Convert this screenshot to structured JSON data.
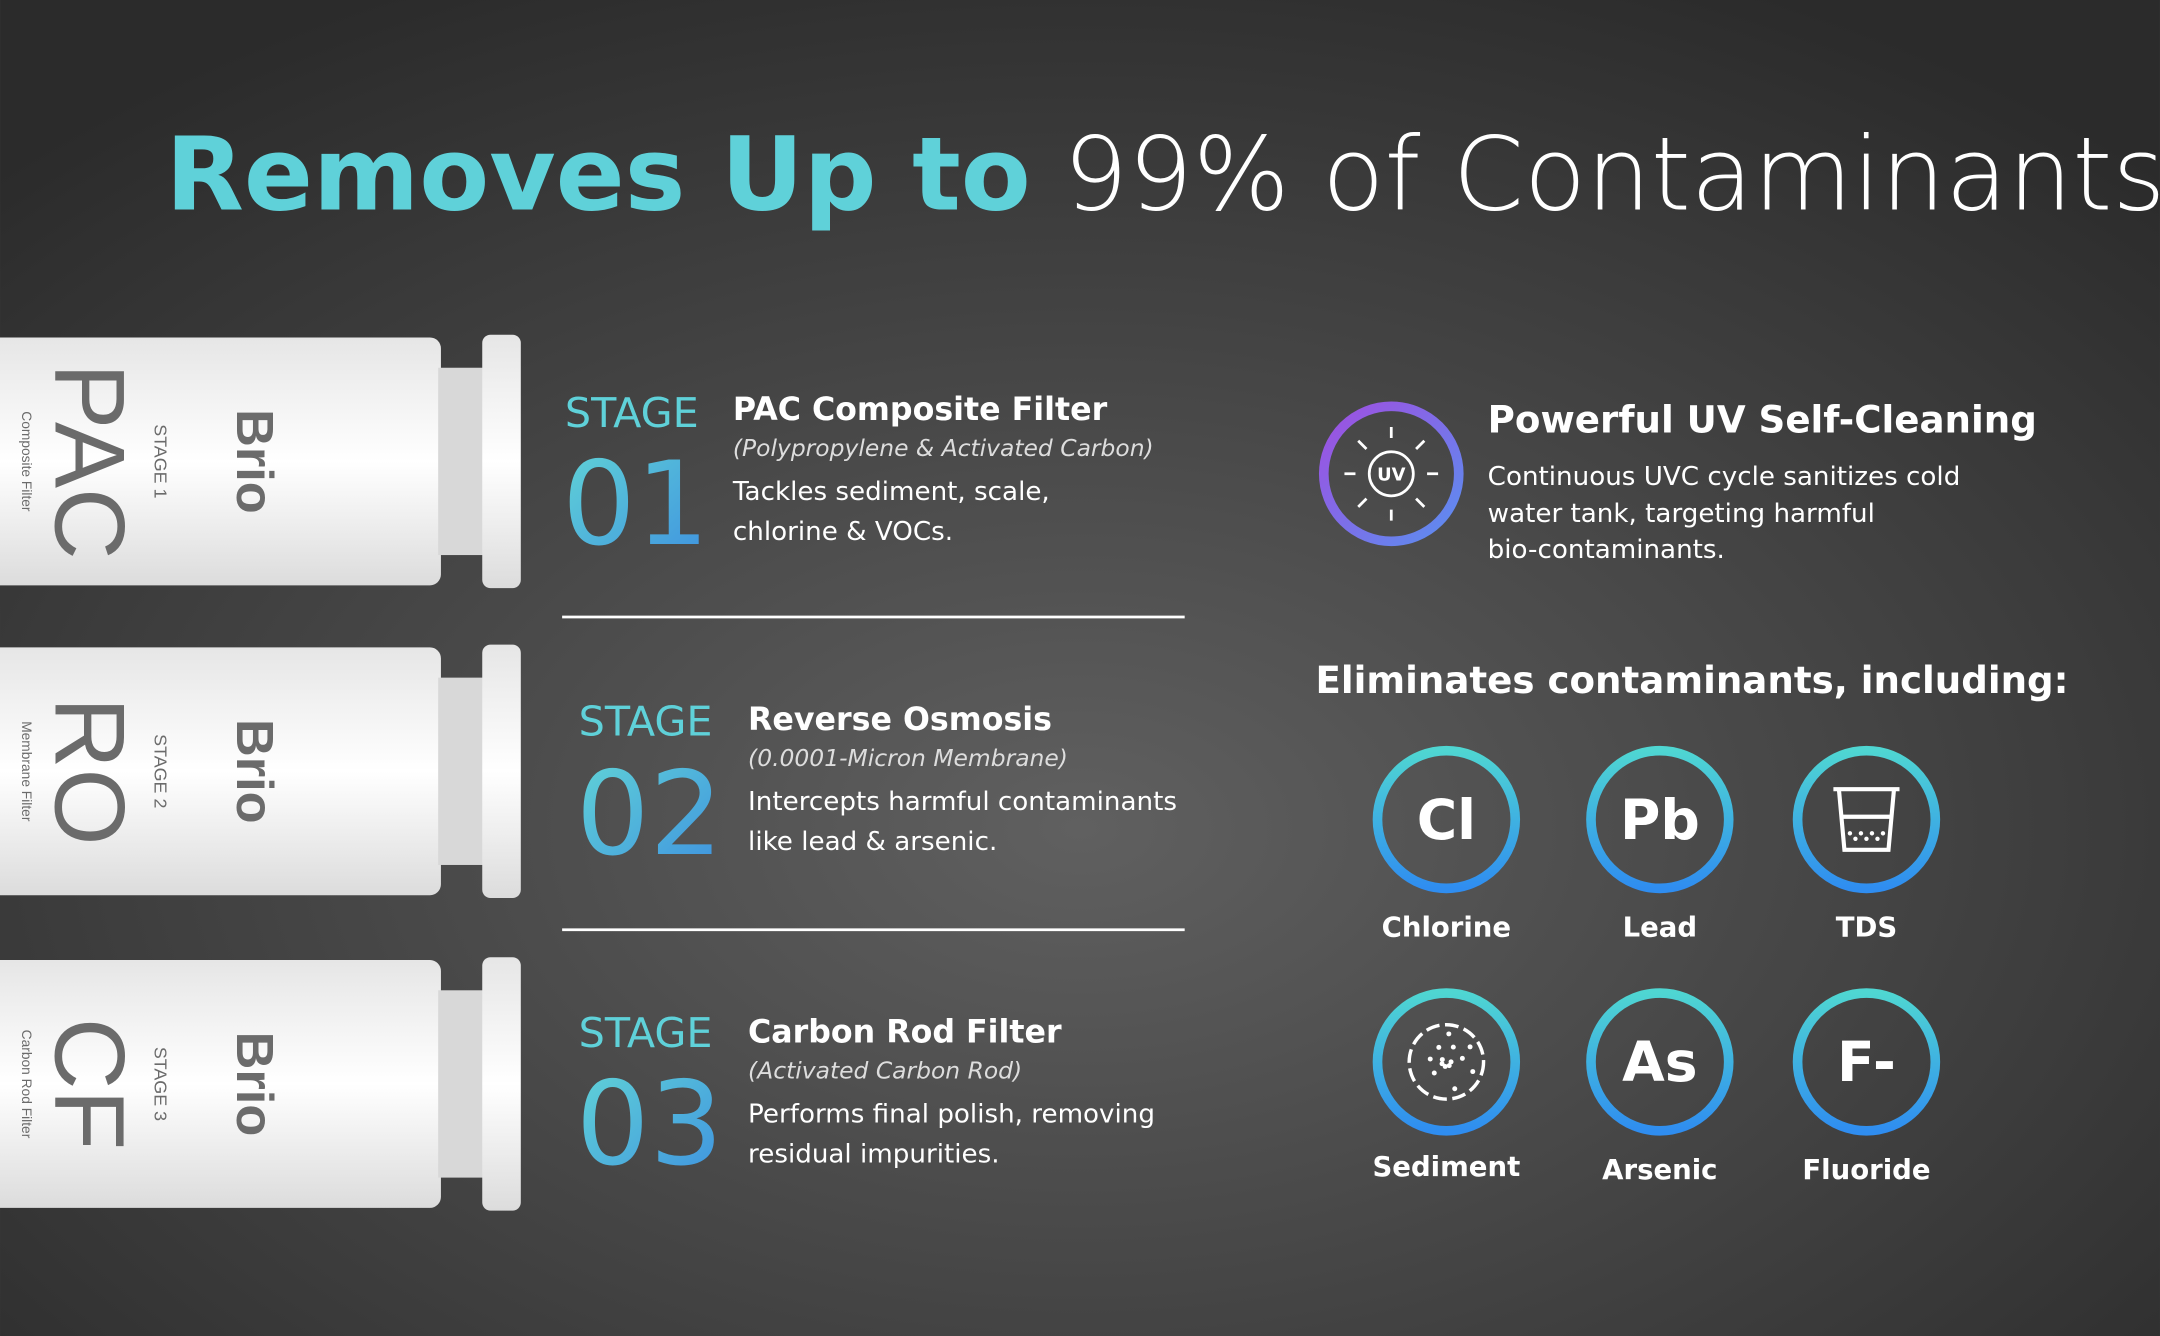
{
  "header": {
    "title_highlight": "Removes Up to",
    "title_rest": "99% of Contaminants"
  },
  "cartridges": [
    {
      "brand": "Brio",
      "stage": "STAGE 1",
      "code": "PAC",
      "type": "Composite Filter"
    },
    {
      "brand": "Brio",
      "stage": "STAGE 2",
      "code": "RO",
      "type": "Membrane Filter"
    },
    {
      "brand": "Brio",
      "stage": "STAGE 3",
      "code": "CF",
      "type": "Carbon Rod Filter"
    }
  ],
  "stages": [
    {
      "label": "STAGE",
      "number": "01",
      "name": "PAC Composite Filter",
      "detail": "(Polypropylene & Activated Carbon)",
      "description": [
        "Tackles sediment, scale,",
        "chlorine & VOCs."
      ]
    },
    {
      "label": "STAGE",
      "number": "02",
      "name": "Reverse Osmosis",
      "detail": "(0.0001-Micron Membrane)",
      "description": [
        "Intercepts harmful contaminants",
        "like lead & arsenic."
      ]
    },
    {
      "label": "STAGE",
      "number": "03",
      "name": "Carbon Rod Filter",
      "detail": "(Activated Carbon Rod)",
      "description": [
        "Performs final polish, removing",
        "residual impurities."
      ]
    }
  ],
  "uv": {
    "icon_label": "UV",
    "title": "Powerful UV Self-Cleaning",
    "description": [
      "Continuous UVC cycle sanitizes cold",
      "water tank, targeting harmful",
      "bio-contaminants."
    ]
  },
  "contaminants": {
    "heading": "Eliminates contaminants, including:",
    "items": [
      {
        "symbol": "Cl",
        "name": "Chlorine"
      },
      {
        "symbol": "Pb",
        "name": "Lead"
      },
      {
        "name": "TDS"
      },
      {
        "name": "Sediment"
      },
      {
        "symbol": "As",
        "name": "Arsenic"
      },
      {
        "symbol": "F-",
        "name": "Fluoride"
      }
    ]
  }
}
